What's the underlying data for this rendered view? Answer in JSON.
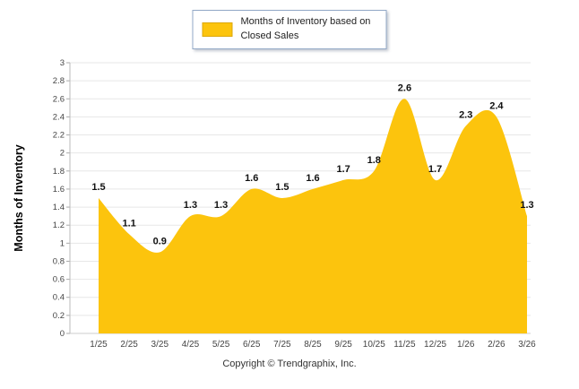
{
  "legend": {
    "label": "Months of Inventory based on Closed Sales",
    "swatch_color": "#FCC40D"
  },
  "footer": {
    "copyright": "Copyright © Trendgraphix, Inc."
  },
  "chart_data": {
    "type": "area",
    "title": "",
    "xlabel": "",
    "ylabel": "Months of Inventory",
    "categories": [
      "1/25",
      "2/25",
      "3/25",
      "4/25",
      "5/25",
      "6/25",
      "7/25",
      "8/25",
      "9/25",
      "10/25",
      "11/25",
      "12/25",
      "1/26",
      "2/26",
      "3/26"
    ],
    "series": [
      {
        "name": "Months of Inventory based on Closed Sales",
        "values": [
          1.5,
          1.1,
          0.9,
          1.3,
          1.3,
          1.6,
          1.5,
          1.6,
          1.7,
          1.8,
          2.6,
          1.7,
          2.3,
          2.4,
          1.3
        ]
      }
    ],
    "ylim": [
      0,
      3
    ],
    "ytick_step": 0.2,
    "grid": true,
    "legend_position": "top",
    "colors": {
      "area_fill": "#FCC40D",
      "grid": "#E7E7E7",
      "axis_line": "#BBBBBB",
      "axis_text": "#444444",
      "label_text": "#111111"
    }
  }
}
